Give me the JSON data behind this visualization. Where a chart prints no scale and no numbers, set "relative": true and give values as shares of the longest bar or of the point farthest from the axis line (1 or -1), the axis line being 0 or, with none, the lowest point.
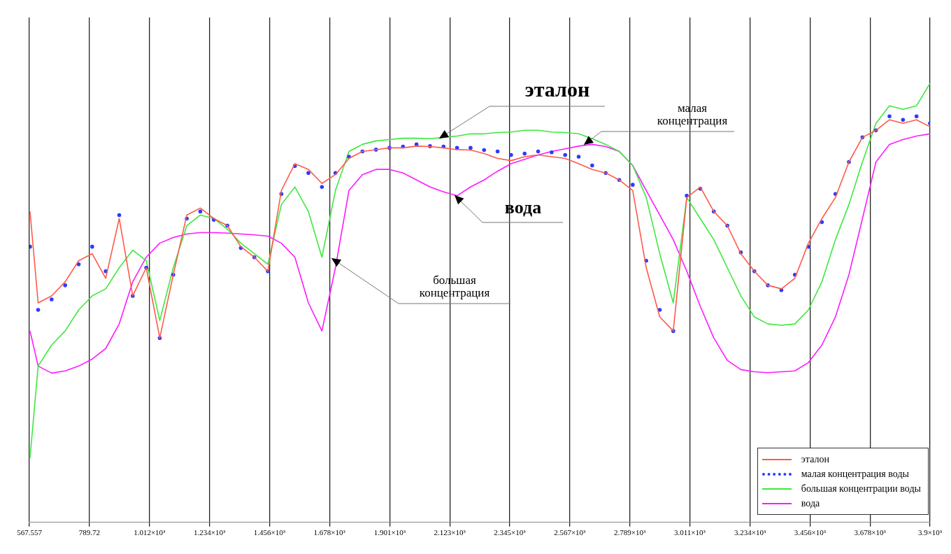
{
  "chart_data": {
    "type": "line",
    "relative": true,
    "x": [
      570,
      600,
      650,
      700,
      750,
      800,
      850,
      900,
      950,
      1000,
      1050,
      1100,
      1150,
      1200,
      1250,
      1300,
      1350,
      1400,
      1450,
      1500,
      1550,
      1600,
      1650,
      1700,
      1750,
      1800,
      1850,
      1900,
      1950,
      2000,
      2050,
      2100,
      2150,
      2200,
      2250,
      2300,
      2350,
      2400,
      2450,
      2500,
      2550,
      2600,
      2650,
      2700,
      2750,
      2800,
      2850,
      2900,
      2950,
      3000,
      3050,
      3100,
      3150,
      3200,
      3250,
      3300,
      3350,
      3400,
      3450,
      3500,
      3550,
      3600,
      3650,
      3700,
      3750,
      3800,
      3850,
      3900
    ],
    "xlim": [
      567.557,
      3900
    ],
    "xticks": [
      567.557,
      789.72,
      {
        "value": 1012,
        "label": "1.012×10³"
      },
      {
        "value": 1234,
        "label": "1.234×10³"
      },
      {
        "value": 1456,
        "label": "1.456×10³"
      },
      {
        "value": 1678,
        "label": "1.678×10³"
      },
      {
        "value": 1901,
        "label": "1.901×10³"
      },
      {
        "value": 2123,
        "label": "2.123×10³"
      },
      {
        "value": 2345,
        "label": "2.345×10³"
      },
      {
        "value": 2567,
        "label": "2.567×10³"
      },
      {
        "value": 2789,
        "label": "2.789×10³"
      },
      {
        "value": 3011,
        "label": "3.011×10³"
      },
      {
        "value": 3234,
        "label": "3.234×10³"
      },
      {
        "value": 3456,
        "label": "3.456×10³"
      },
      {
        "value": 3678,
        "label": "3.678×10³"
      },
      {
        "value": 3900,
        "label": "3.9×10³"
      }
    ],
    "series": [
      {
        "name": "эталон",
        "color": "#ff5a4a",
        "values": [
          0.708,
          0.5,
          0.516,
          0.548,
          0.596,
          0.612,
          0.556,
          0.692,
          0.516,
          0.58,
          0.42,
          0.564,
          0.7,
          0.716,
          0.692,
          0.676,
          0.628,
          0.604,
          0.572,
          0.756,
          0.817,
          0.804,
          0.772,
          0.792,
          0.829,
          0.845,
          0.849,
          0.853,
          0.853,
          0.857,
          0.856,
          0.853,
          0.849,
          0.848,
          0.84,
          0.829,
          0.824,
          0.833,
          0.837,
          0.833,
          0.829,
          0.817,
          0.804,
          0.796,
          0.78,
          0.756,
          0.58,
          0.468,
          0.436,
          0.74,
          0.764,
          0.708,
          0.676,
          0.612,
          0.572,
          0.54,
          0.532,
          0.556,
          0.636,
          0.692,
          0.74,
          0.821,
          0.877,
          0.893,
          0.917,
          0.909,
          0.917,
          0.901
        ]
      },
      {
        "name": "малая концентрация воды",
        "color": "#2b3cff",
        "type": "scatter",
        "marker": "circle",
        "values": [
          0.628,
          0.484,
          0.508,
          0.54,
          0.588,
          0.628,
          0.572,
          0.7,
          0.516,
          0.58,
          0.42,
          0.564,
          0.692,
          0.708,
          0.689,
          0.676,
          0.625,
          0.604,
          0.572,
          0.748,
          0.812,
          0.796,
          0.764,
          0.796,
          0.833,
          0.845,
          0.849,
          0.853,
          0.856,
          0.861,
          0.857,
          0.856,
          0.853,
          0.853,
          0.848,
          0.845,
          0.837,
          0.84,
          0.845,
          0.843,
          0.837,
          0.833,
          0.813,
          0.796,
          0.78,
          0.769,
          0.596,
          0.484,
          0.436,
          0.744,
          0.76,
          0.708,
          0.676,
          0.615,
          0.572,
          0.54,
          0.529,
          0.564,
          0.628,
          0.684,
          0.748,
          0.821,
          0.877,
          0.893,
          0.925,
          0.917,
          0.925,
          0.909
        ]
      },
      {
        "name": "большая концентрации воды",
        "color": "#3ee83e",
        "values": [
          0.147,
          0.356,
          0.404,
          0.436,
          0.484,
          0.516,
          0.532,
          0.58,
          0.62,
          0.596,
          0.46,
          0.58,
          0.676,
          0.7,
          0.692,
          0.668,
          0.636,
          0.612,
          0.588,
          0.724,
          0.764,
          0.708,
          0.604,
          0.756,
          0.845,
          0.861,
          0.869,
          0.872,
          0.875,
          0.875,
          0.874,
          0.877,
          0.88,
          0.885,
          0.885,
          0.888,
          0.889,
          0.893,
          0.893,
          0.889,
          0.888,
          0.885,
          0.874,
          0.861,
          0.845,
          0.813,
          0.74,
          0.612,
          0.5,
          0.74,
          0.692,
          0.644,
          0.58,
          0.516,
          0.468,
          0.452,
          0.449,
          0.452,
          0.484,
          0.548,
          0.644,
          0.724,
          0.821,
          0.909,
          0.949,
          0.941,
          0.949,
          1
        ]
      },
      {
        "name": "вода",
        "color": "#ff1aff",
        "values": [
          0.436,
          0.356,
          0.34,
          0.345,
          0.356,
          0.372,
          0.396,
          0.452,
          0.548,
          0.604,
          0.636,
          0.649,
          0.657,
          0.66,
          0.66,
          0.659,
          0.657,
          0.655,
          0.652,
          0.636,
          0.604,
          0.5,
          0.436,
          0.58,
          0.756,
          0.792,
          0.804,
          0.804,
          0.796,
          0.78,
          0.764,
          0.753,
          0.744,
          0.764,
          0.78,
          0.8,
          0.817,
          0.827,
          0.837,
          0.845,
          0.851,
          0.857,
          0.861,
          0.856,
          0.845,
          0.813,
          0.756,
          0.7,
          0.644,
          0.572,
          0.492,
          0.42,
          0.369,
          0.348,
          0.343,
          0.341,
          0.343,
          0.345,
          0.364,
          0.404,
          0.468,
          0.564,
          0.692,
          0.821,
          0.861,
          0.872,
          0.88,
          0.885
        ]
      }
    ],
    "marker": "none",
    "grid": "x",
    "legend": "bottom right",
    "annotations": [
      "эталон",
      "малая\nконцентрация",
      "вода",
      "большая\nконцентрация"
    ]
  }
}
